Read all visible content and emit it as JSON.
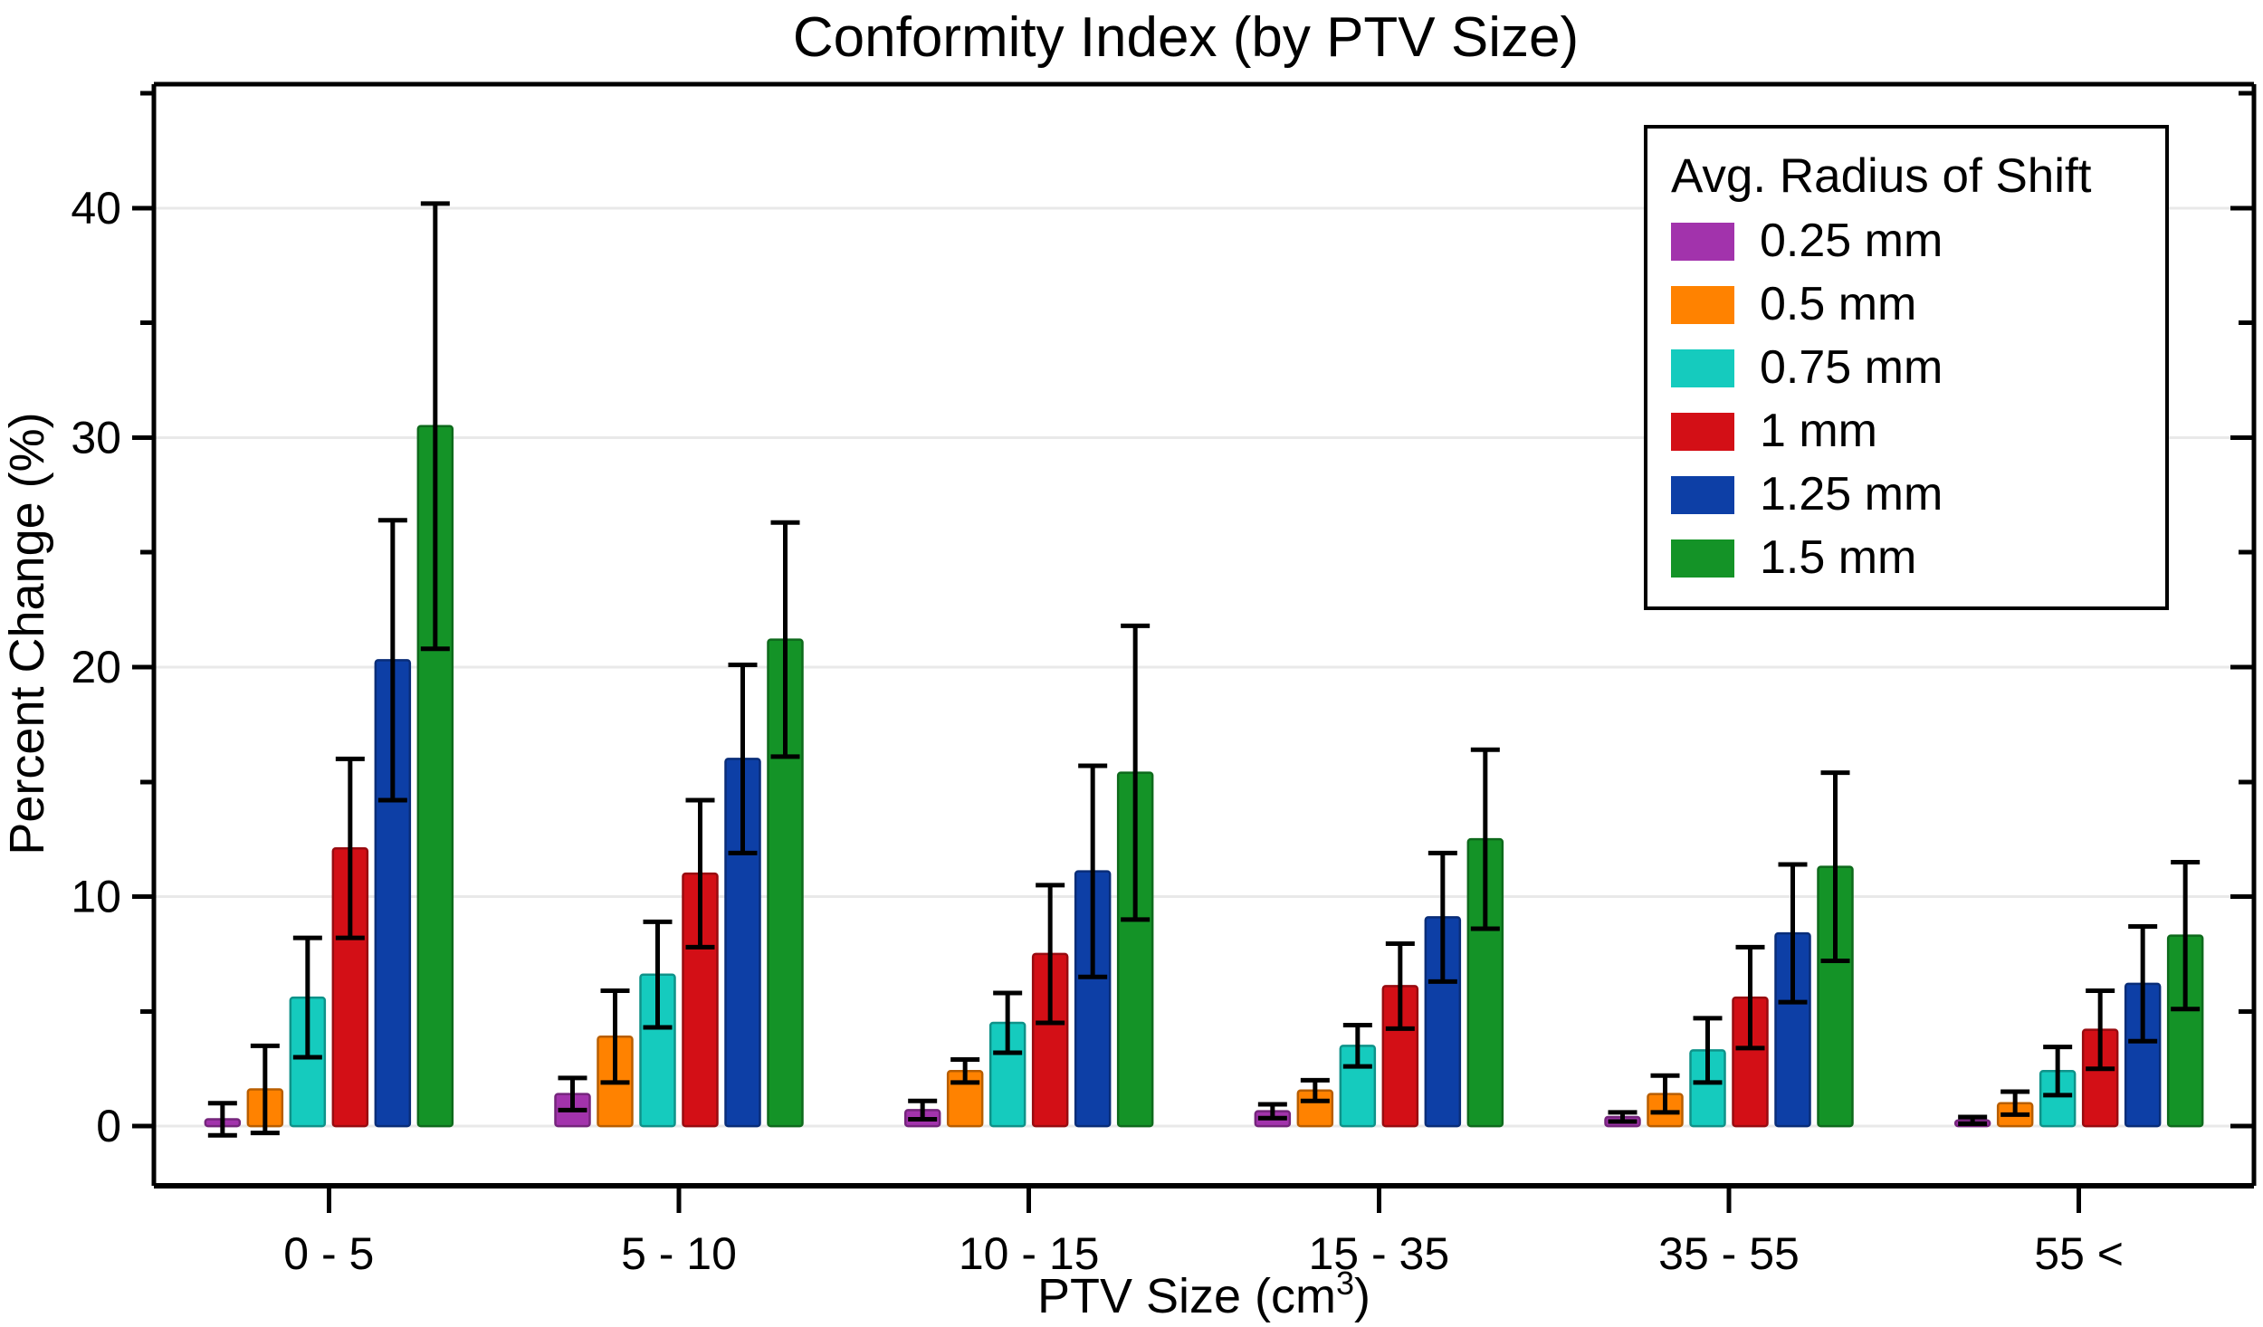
{
  "title": "Conformity Index (by PTV Size)",
  "axes": {
    "y_label": "Percent Change (%)",
    "x_label_prefix": "PTV Size (cm",
    "x_label_sup": "3",
    "x_label_suffix": ")",
    "y_major_ticks": [
      0,
      10,
      20,
      30,
      40
    ],
    "y_minor_ticks": [
      5,
      15,
      25,
      35,
      45
    ]
  },
  "legend": {
    "title": "Avg. Radius of Shift"
  },
  "colors": {
    "background": "#FFFFFF",
    "grid": "#E9E9E9",
    "axis": "#000000",
    "error_bar": "#000000"
  },
  "chart_data": {
    "type": "bar",
    "title": "Conformity Index (by PTV Size)",
    "xlabel": "PTV Size (cm³)",
    "ylabel": "Percent Change (%)",
    "legend_title": "Avg. Radius of Shift",
    "legend_position": "upper right",
    "grid": "horizontal major gridlines",
    "error_bars": "symmetric, black caps",
    "ylim": [
      -2.6,
      45.4
    ],
    "y_major_ticks": [
      0,
      10,
      20,
      30,
      40
    ],
    "y_minor_ticks": [
      5,
      15,
      25,
      35,
      45
    ],
    "categories": [
      "0 - 5",
      "5 - 10",
      "10 - 15",
      "15 - 35",
      "35 - 55",
      "55 <"
    ],
    "series": [
      {
        "name": "0.25 mm",
        "color": "#A233AC",
        "values": [
          0.3,
          1.4,
          0.7,
          0.65,
          0.4,
          0.25
        ],
        "errors": [
          0.7,
          0.7,
          0.4,
          0.3,
          0.2,
          0.15
        ]
      },
      {
        "name": "0.5 mm",
        "color": "#FF8200",
        "values": [
          1.6,
          3.9,
          2.4,
          1.55,
          1.4,
          1.0
        ],
        "errors": [
          1.9,
          2.0,
          0.5,
          0.45,
          0.8,
          0.5
        ]
      },
      {
        "name": "0.75 mm",
        "color": "#15CBBE",
        "values": [
          5.6,
          6.6,
          4.5,
          3.5,
          3.3,
          2.4
        ],
        "errors": [
          2.6,
          2.3,
          1.3,
          0.9,
          1.4,
          1.05
        ]
      },
      {
        "name": "1 mm",
        "color": "#D30F16",
        "values": [
          12.1,
          11.0,
          7.5,
          6.1,
          5.6,
          4.2
        ],
        "errors": [
          3.9,
          3.2,
          3.0,
          1.85,
          2.2,
          1.7
        ]
      },
      {
        "name": "1.25 mm",
        "color": "#0D3FA6",
        "values": [
          20.3,
          16.0,
          11.1,
          9.1,
          8.4,
          6.2
        ],
        "errors": [
          6.1,
          4.1,
          4.6,
          2.8,
          3.0,
          2.5
        ]
      },
      {
        "name": "1.5 mm",
        "color": "#149327",
        "values": [
          30.5,
          21.2,
          15.4,
          12.5,
          11.3,
          8.3
        ],
        "errors": [
          9.7,
          5.1,
          6.4,
          3.9,
          4.1,
          3.2
        ]
      }
    ]
  }
}
